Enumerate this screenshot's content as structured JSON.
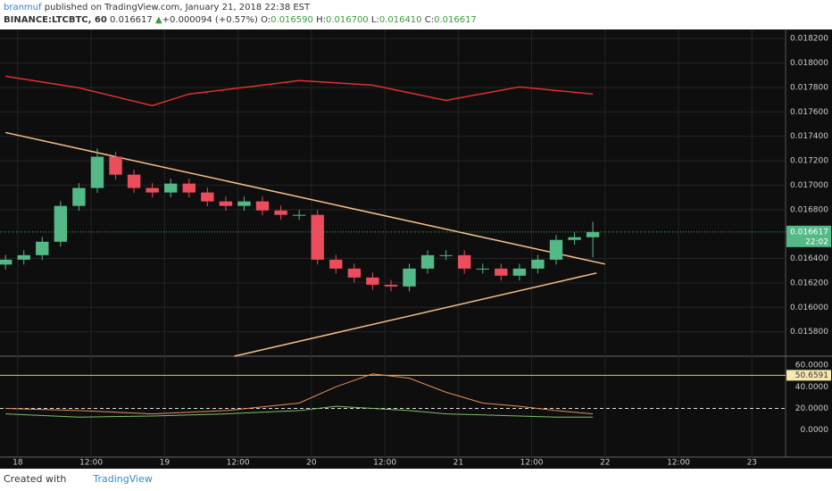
{
  "header": {
    "author": "branmuf",
    "published": "published on TradingView.com, January 21, 2018 22:38 EST"
  },
  "symbol": {
    "name": "BINANCE:LTCBTC, 60",
    "last": "0.016617",
    "arrow": "▲",
    "change": "+0.000094 (+0.57%)",
    "o_label": "O:",
    "o": "0.016590",
    "h_label": "H:",
    "h": "0.016700",
    "l_label": "L:",
    "l": "0.016410",
    "c_label": "C:",
    "c": "0.016617"
  },
  "chart_data": [
    {
      "type": "candlestick",
      "up_color": "#53b987",
      "down_color": "#eb4d5c",
      "x": [
        -2,
        1,
        4,
        7,
        10,
        13,
        16,
        19,
        22,
        25,
        28,
        31,
        34,
        37,
        40,
        43,
        46,
        49,
        52,
        55,
        58,
        61,
        64,
        67,
        70,
        73,
        76,
        79,
        82,
        85,
        88,
        91,
        94
      ],
      "open": [
        0.01635,
        0.01639,
        0.016427,
        0.016537,
        0.01683,
        0.016977,
        0.017233,
        0.017086,
        0.016977,
        0.01694,
        0.017013,
        0.01694,
        0.016867,
        0.01683,
        0.016867,
        0.016793,
        0.016757,
        0.016757,
        0.01639,
        0.016317,
        0.016244,
        0.016185,
        0.016171,
        0.016317,
        0.016427,
        0.016427,
        0.016317,
        0.016317,
        0.016259,
        0.016317,
        0.01639,
        0.016552,
        0.016574
      ],
      "high": [
        0.01643,
        0.016467,
        0.016577,
        0.01687,
        0.017017,
        0.0173,
        0.017273,
        0.017126,
        0.017017,
        0.017053,
        0.017053,
        0.01698,
        0.016907,
        0.016907,
        0.016907,
        0.016833,
        0.016797,
        0.016797,
        0.01643,
        0.016357,
        0.016284,
        0.016225,
        0.016357,
        0.016467,
        0.016467,
        0.016467,
        0.016357,
        0.016357,
        0.016357,
        0.01643,
        0.016592,
        0.016614,
        0.0167
      ],
      "low": [
        0.01631,
        0.01635,
        0.016387,
        0.016497,
        0.01679,
        0.016937,
        0.017046,
        0.016937,
        0.0169,
        0.0169,
        0.0169,
        0.016827,
        0.01679,
        0.01679,
        0.016753,
        0.016717,
        0.016717,
        0.01635,
        0.016277,
        0.016204,
        0.016145,
        0.016131,
        0.016131,
        0.016277,
        0.016387,
        0.016277,
        0.016277,
        0.016219,
        0.016219,
        0.016277,
        0.01635,
        0.016512,
        0.01641
      ],
      "close": [
        0.01639,
        0.016427,
        0.016537,
        0.01683,
        0.016977,
        0.017233,
        0.017086,
        0.016977,
        0.01694,
        0.017013,
        0.01694,
        0.016867,
        0.01683,
        0.016867,
        0.016793,
        0.016757,
        0.016757,
        0.01639,
        0.016317,
        0.016244,
        0.016185,
        0.016171,
        0.016317,
        0.016427,
        0.016427,
        0.016317,
        0.016317,
        0.016259,
        0.016317,
        0.01639,
        0.016552,
        0.016574,
        0.016617
      ],
      "lines": [
        {
          "color": "#e03030",
          "x": [
            -2,
            10,
            22,
            28,
            40,
            46,
            58,
            70,
            82,
            94
          ],
          "values": [
            0.017892,
            0.017797,
            0.017651,
            0.017746,
            0.017819,
            0.017856,
            0.017819,
            0.017694,
            0.017804,
            0.017746
          ]
        },
        {
          "color": "#f5c08a",
          "x": [
            -2,
            96
          ],
          "values": [
            0.017431,
            0.016354
          ]
        },
        {
          "color": "#f5c08a",
          "x": [
            35.4,
            94.6
          ],
          "values": [
            0.0156,
            0.016281
          ]
        }
      ],
      "xlim": [
        -2.9,
        125.5
      ],
      "xticks": [
        {
          "value": 0,
          "label": "18"
        },
        {
          "value": 12,
          "label": "12:00"
        },
        {
          "value": 24,
          "label": "19"
        },
        {
          "value": 36,
          "label": "12:00"
        },
        {
          "value": 48,
          "label": "20"
        },
        {
          "value": 60,
          "label": "12:00"
        },
        {
          "value": 72,
          "label": "21"
        },
        {
          "value": 84,
          "label": "12:00"
        },
        {
          "value": 96,
          "label": "22"
        },
        {
          "value": 108,
          "label": "12:00"
        },
        {
          "value": 120,
          "label": "23"
        }
      ],
      "ylim": [
        0.0156,
        0.01826
      ],
      "yticks": [
        {
          "value": 0.0182,
          "label": "0.018200"
        },
        {
          "value": 0.018,
          "label": "0.018000"
        },
        {
          "value": 0.0178,
          "label": "0.017800"
        },
        {
          "value": 0.0176,
          "label": "0.017600"
        },
        {
          "value": 0.0174,
          "label": "0.017400"
        },
        {
          "value": 0.0172,
          "label": "0.017200"
        },
        {
          "value": 0.017,
          "label": "0.017000"
        },
        {
          "value": 0.0168,
          "label": "0.016800"
        },
        {
          "value": 0.0164,
          "label": "0.016400"
        },
        {
          "value": 0.0162,
          "label": "0.016200"
        },
        {
          "value": 0.016,
          "label": "0.016000"
        },
        {
          "value": 0.0158,
          "label": "0.015800"
        }
      ],
      "last_price": {
        "value": 0.016617,
        "label": "0.016617"
      },
      "countdown": "22:02",
      "grid": true
    },
    {
      "type": "line",
      "series": [
        {
          "color": "#e8905a",
          "x": [
            -2,
            10,
            22,
            34,
            46,
            52,
            58,
            64,
            70,
            76,
            82,
            88,
            94
          ],
          "values": [
            20,
            18,
            15,
            18,
            25,
            40,
            52,
            48,
            35,
            25,
            22,
            18,
            15
          ]
        },
        {
          "color": "#7bbf6a",
          "x": [
            -2,
            10,
            22,
            34,
            46,
            52,
            58,
            64,
            70,
            76,
            82,
            88,
            94
          ],
          "values": [
            15,
            12,
            13,
            15,
            18,
            22,
            20,
            18,
            15,
            14,
            13,
            12,
            12
          ]
        }
      ],
      "ylim": [
        -25,
        67.5
      ],
      "yticks": [
        {
          "value": 60,
          "label": "60.0000"
        },
        {
          "value": 40,
          "label": "40.0000"
        },
        {
          "value": 20,
          "label": "20.0000"
        },
        {
          "value": 0,
          "label": "0.0000"
        }
      ],
      "current": {
        "value": 50.6591,
        "label": "50.6591"
      },
      "reference": 20
    }
  ],
  "footer": {
    "created": "Created with",
    "brand": "TradingView"
  }
}
